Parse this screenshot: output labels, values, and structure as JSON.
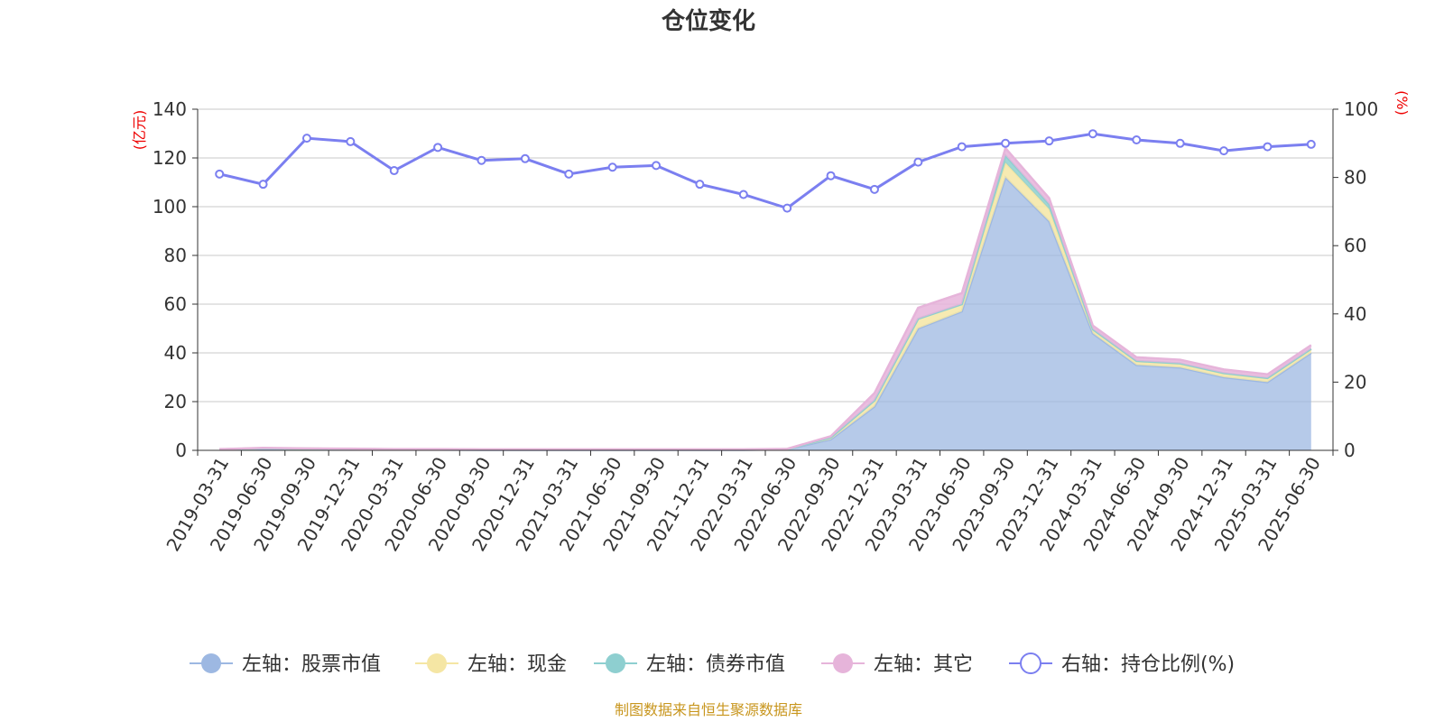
{
  "chart_data": {
    "type": "area",
    "title": "仓位变化",
    "left_axis_unit": "(亿元)",
    "right_axis_unit": "(%)",
    "ylim_left": [
      0,
      140
    ],
    "ylim_right": [
      0,
      100
    ],
    "left_ticks": [
      0,
      20,
      40,
      60,
      80,
      100,
      120,
      140
    ],
    "right_ticks": [
      0,
      20,
      40,
      60,
      80,
      100
    ],
    "categories": [
      "2019-03-31",
      "2019-06-30",
      "2019-09-30",
      "2019-12-31",
      "2020-03-31",
      "2020-06-30",
      "2020-09-30",
      "2020-12-31",
      "2021-03-31",
      "2021-06-30",
      "2021-09-30",
      "2021-12-31",
      "2022-03-31",
      "2022-06-30",
      "2022-09-30",
      "2022-12-31",
      "2023-03-31",
      "2023-06-30",
      "2023-09-30",
      "2023-12-31",
      "2024-03-31",
      "2024-06-30",
      "2024-09-30",
      "2024-12-31",
      "2025-03-31",
      "2025-06-30"
    ],
    "series": [
      {
        "name": "左轴：股票市值",
        "axis": "left",
        "stacked": true,
        "color": "#9db8e2",
        "values": [
          0.3,
          0.8,
          0.6,
          0.5,
          0.3,
          0.3,
          0.2,
          0.2,
          0.2,
          0.2,
          0.2,
          0.2,
          0.2,
          0.4,
          4.5,
          18,
          50,
          57,
          112,
          94,
          48,
          35,
          34,
          30,
          28,
          40
        ]
      },
      {
        "name": "左轴：现金",
        "axis": "left",
        "stacked": true,
        "color": "#f5e6a4",
        "values": [
          0.1,
          0.1,
          0.1,
          0.1,
          0.1,
          0.1,
          0.1,
          0.1,
          0.1,
          0.1,
          0.1,
          0.1,
          0.1,
          0.1,
          0.8,
          2.5,
          4,
          3,
          6,
          5,
          1.5,
          1.5,
          1.5,
          1.5,
          1.5,
          1.5
        ]
      },
      {
        "name": "左轴：债券市值",
        "axis": "left",
        "stacked": true,
        "color": "#8ecfd0",
        "values": [
          0,
          0,
          0,
          0,
          0,
          0,
          0,
          0,
          0,
          0,
          0,
          0,
          0,
          0,
          0,
          0,
          0,
          0,
          3,
          2,
          0.2,
          0.2,
          0.2,
          0.2,
          0.2,
          0.2
        ]
      },
      {
        "name": "左轴：其它",
        "axis": "left",
        "stacked": true,
        "color": "#e6b4da",
        "values": [
          0.1,
          0.1,
          0.1,
          0.1,
          0.1,
          0.1,
          0.1,
          0.1,
          0.1,
          0.1,
          0.1,
          0.1,
          0.1,
          0.1,
          0.5,
          3,
          4.5,
          4.5,
          3,
          2.5,
          1.5,
          1.5,
          1.5,
          1.5,
          1.5,
          1.5
        ]
      },
      {
        "name": "右轴：持仓比例(%)",
        "axis": "right",
        "stacked": false,
        "color": "#7b7ff0",
        "values": [
          81,
          78,
          91.5,
          90.5,
          82,
          88.8,
          85,
          85.5,
          81,
          83,
          83.5,
          78,
          75,
          71,
          80.5,
          76.5,
          84.5,
          89,
          90,
          90.7,
          92.8,
          91,
          90,
          87.8,
          89,
          89.7
        ]
      }
    ],
    "legend_position": "bottom",
    "grid": true
  },
  "source_note": "制图数据来自恒生聚源数据库"
}
